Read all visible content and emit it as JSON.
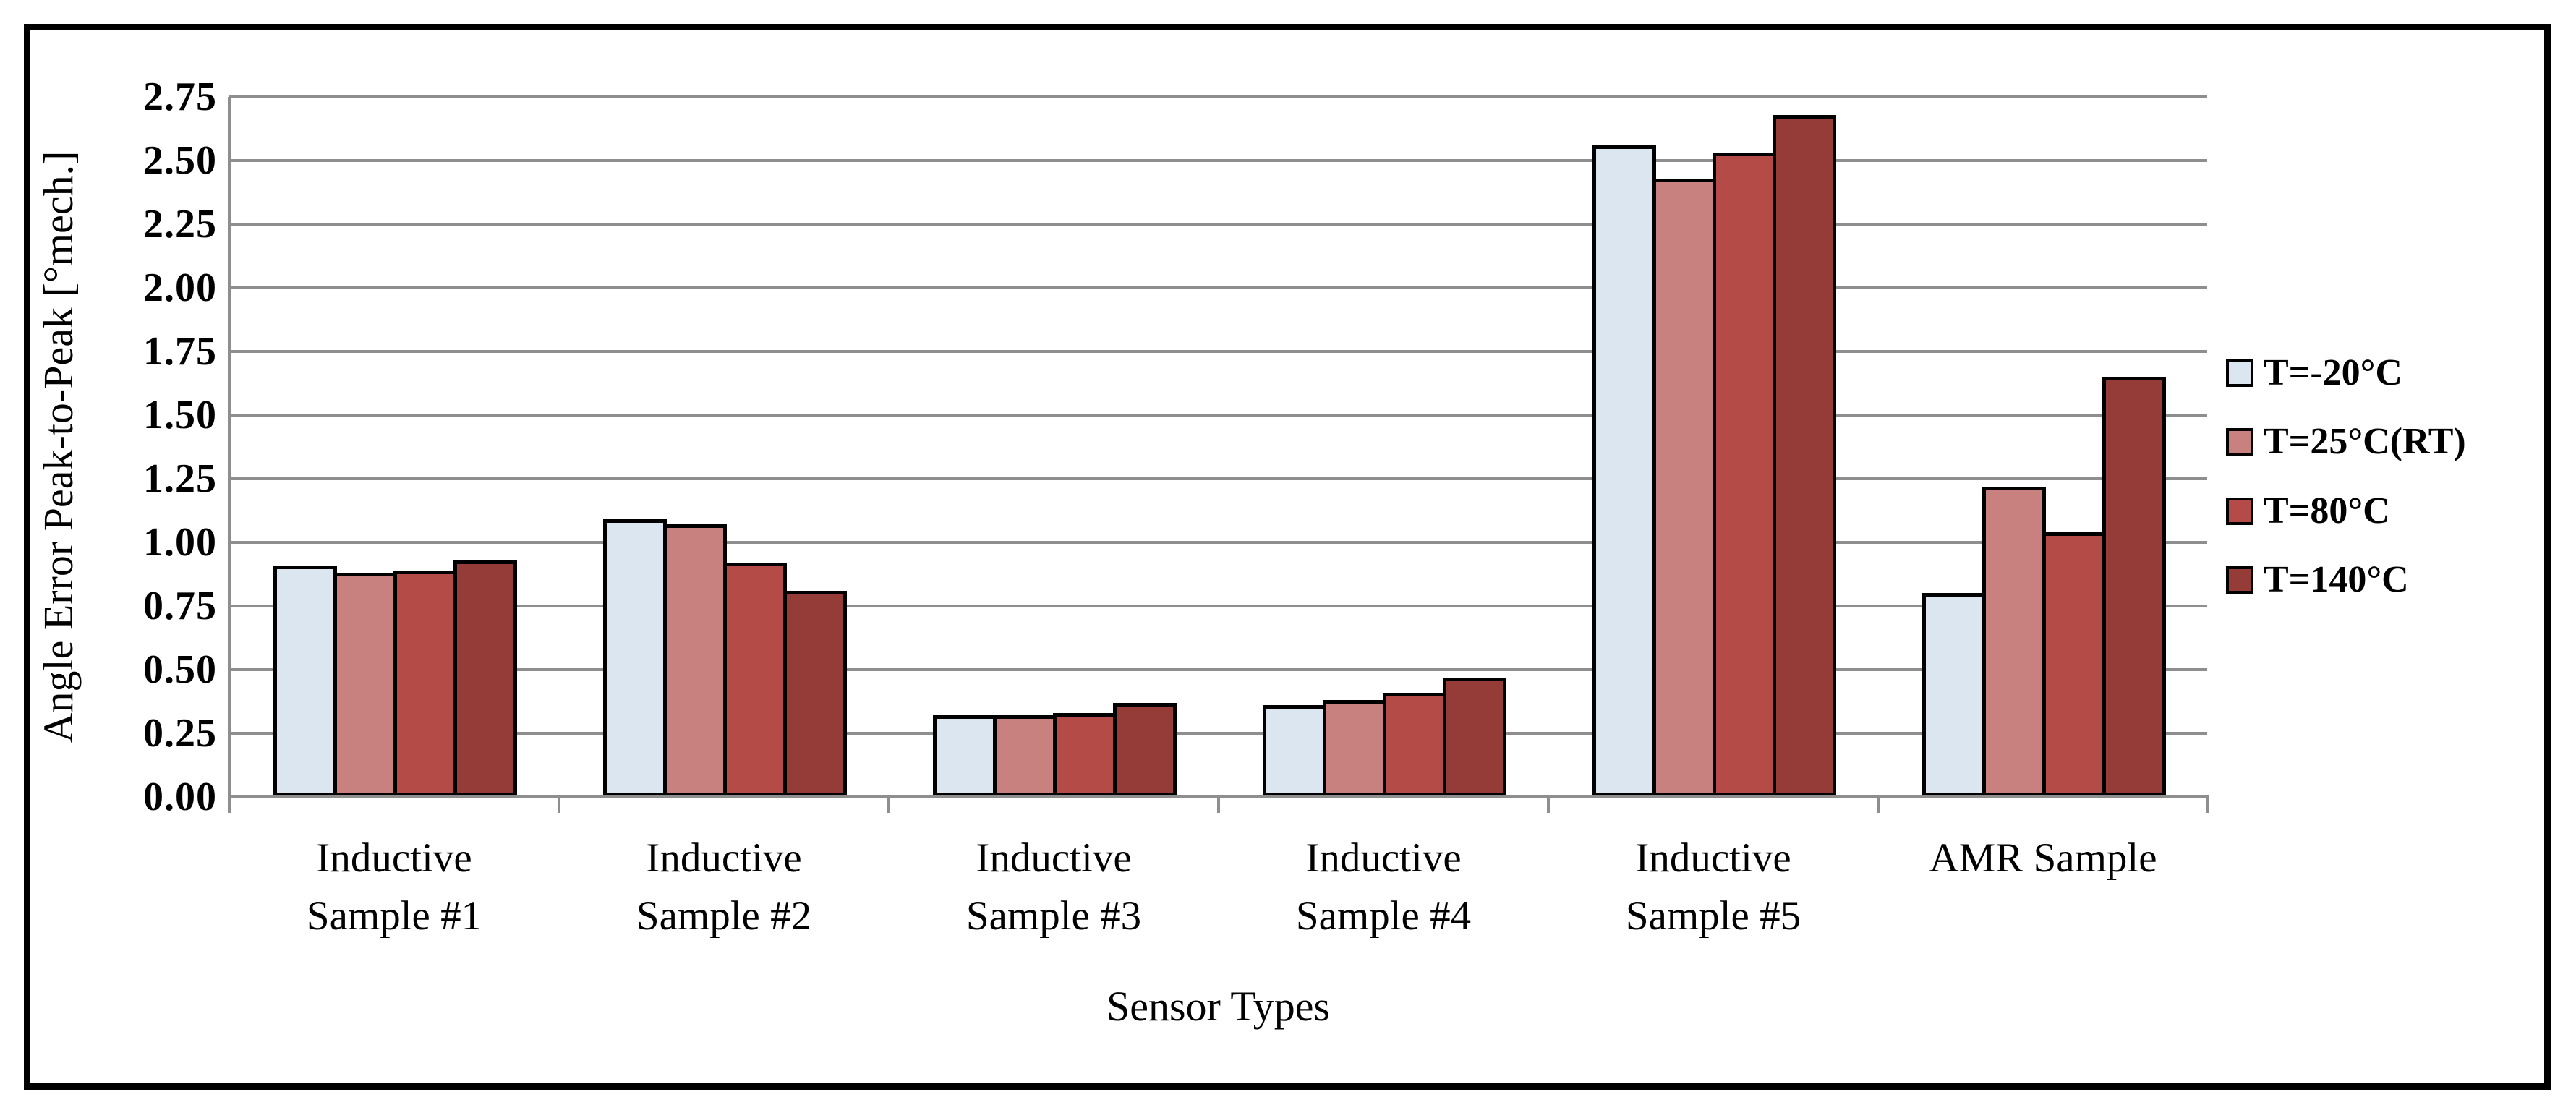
{
  "chart_data": {
    "type": "bar",
    "title": "",
    "xlabel": "Sensor Types",
    "ylabel": "Angle Error Peak-to-Peak [°mech.]",
    "ylim": [
      0,
      2.75
    ],
    "ytick_step": 0.25,
    "ytick_labels": [
      "0.00",
      "0.25",
      "0.50",
      "0.75",
      "1.00",
      "1.25",
      "1.50",
      "1.75",
      "2.00",
      "2.25",
      "2.50",
      "2.75"
    ],
    "grid": true,
    "legend_position": "right-outside",
    "categories": [
      [
        "Inductive",
        "Sample #1"
      ],
      [
        "Inductive",
        "Sample #2"
      ],
      [
        "Inductive",
        "Sample #3"
      ],
      [
        "Inductive",
        "Sample #4"
      ],
      [
        "Inductive",
        "Sample #5"
      ],
      [
        "AMR Sample"
      ]
    ],
    "series": [
      {
        "name": "T=-20°C",
        "color": "#dce6f1",
        "values": [
          0.91,
          1.09,
          0.32,
          0.36,
          2.56,
          0.8
        ]
      },
      {
        "name": "T=25°C(RT)",
        "color": "#c9817f",
        "values": [
          0.88,
          1.07,
          0.32,
          0.38,
          2.43,
          1.22
        ]
      },
      {
        "name": "T=80°C",
        "color": "#b54b46",
        "values": [
          0.89,
          0.92,
          0.33,
          0.41,
          2.53,
          1.04
        ]
      },
      {
        "name": "T=140°C",
        "color": "#953b38",
        "values": [
          0.93,
          0.81,
          0.37,
          0.47,
          2.68,
          1.65
        ]
      }
    ],
    "colors": {
      "gridline": "#8e8e8e",
      "axis": "#8e8e8e",
      "bar_border": "#000000",
      "frame_border": "#000000",
      "background": "#ffffff"
    }
  }
}
